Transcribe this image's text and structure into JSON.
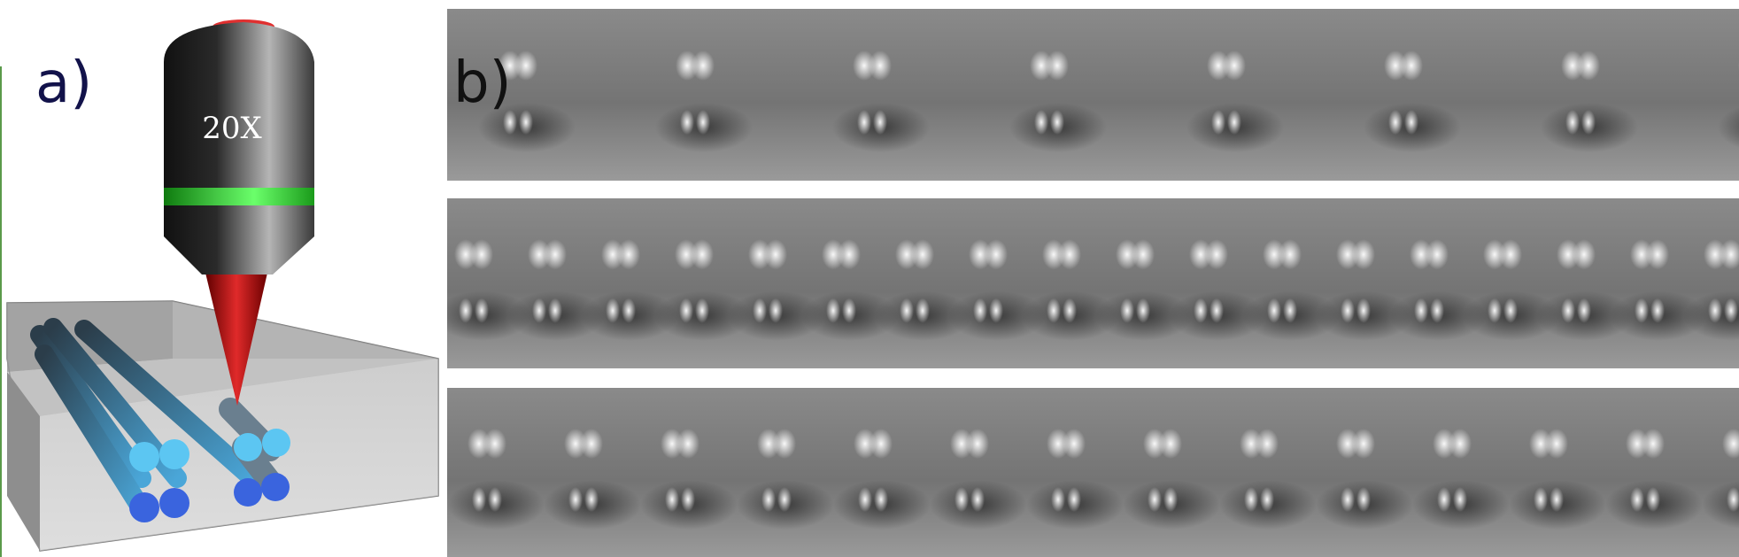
{
  "panel_a": {
    "label": "a)",
    "objective_text": "20X",
    "colors": {
      "objective_body": "#2a2a2a",
      "objective_cap": "#e03030",
      "objective_ring": "#33dd33",
      "laser_cone": "#c01818",
      "fiber_end_light": "#5cc6f2",
      "fiber_end_dark": "#3a64de",
      "container": "#bdbdbd"
    }
  },
  "panel_b": {
    "label": "b)",
    "strips": [
      {
        "name": "strip-1",
        "groups": 9,
        "start": 80,
        "spacing": 200
      },
      {
        "name": "strip-2",
        "groups": 18,
        "start": 30,
        "spacing": 83
      },
      {
        "name": "strip-3",
        "groups": 14,
        "start": 45,
        "spacing": 109
      }
    ]
  }
}
